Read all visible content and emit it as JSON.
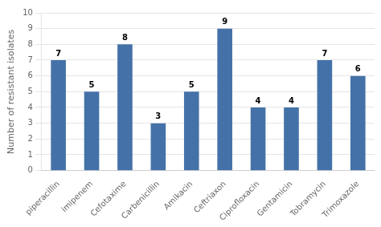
{
  "chart_data": {
    "type": "bar",
    "ylabel": "Number of resistant isolates",
    "categories": [
      "piperacillin",
      "imipenem",
      "Cefotaxime",
      "Carbenicillin",
      "Amikacin",
      "Ceftriaxon",
      "Ciprofloxacin",
      "Gentamicin",
      "Tobramycin",
      "Trimoxazole"
    ],
    "values": [
      7,
      5,
      8,
      3,
      5,
      9,
      4,
      4,
      7,
      6
    ],
    "color": "#4472a8",
    "ylim": [
      0,
      10
    ],
    "yticks": [
      0,
      1,
      2,
      3,
      4,
      5,
      6,
      7,
      8,
      9,
      10
    ],
    "grid": true,
    "data_labels": true
  }
}
